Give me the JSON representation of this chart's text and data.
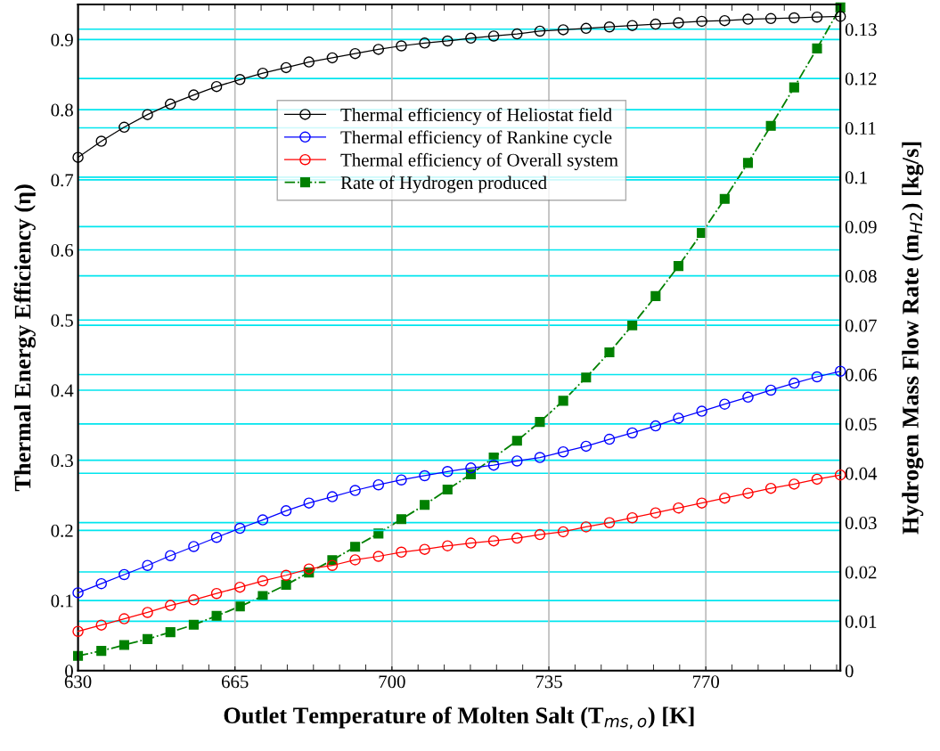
{
  "chart_data": {
    "type": "line",
    "xlabel": "Outlet Temperature of Molten Salt (T$_{ms,o}$) [K]",
    "ylabel": "Thermal Energy Efficiency (η)",
    "y2label": "Hydrogen Mass Flow Rate (m$_{H2}$) [kg/s]",
    "x": [
      630,
      635.2,
      640.3,
      645.5,
      650.6,
      655.8,
      660.9,
      666.1,
      671.2,
      676.4,
      681.5,
      686.7,
      691.8,
      697.0,
      702.1,
      707.3,
      712.4,
      717.6,
      722.7,
      727.9,
      733.0,
      738.2,
      743.3,
      748.5,
      753.6,
      758.8,
      763.9,
      769.1,
      774.2,
      779.4,
      784.5,
      789.7,
      794.8,
      800
    ],
    "xlim": [
      630,
      800
    ],
    "xticks": [
      630,
      665,
      700,
      735,
      770
    ],
    "ylim": [
      0,
      0.95
    ],
    "yticks": [
      0,
      0.1,
      0.2,
      0.3,
      0.4,
      0.5,
      0.6,
      0.7,
      0.8,
      0.9
    ],
    "y2lim": [
      0,
      0.135
    ],
    "y2ticks": [
      0,
      0.01,
      0.02,
      0.03,
      0.04,
      0.05,
      0.06,
      0.07,
      0.08,
      0.09,
      0.1,
      0.11,
      0.12,
      0.13
    ],
    "grid": true,
    "legend": "top",
    "series": [
      {
        "name": "Thermal efficiency of Heliostat field",
        "color": "#000000",
        "marker": "circle",
        "line_style": "solid",
        "values": [
          0.732,
          0.755,
          0.775,
          0.793,
          0.808,
          0.821,
          0.833,
          0.843,
          0.852,
          0.86,
          0.868,
          0.874,
          0.88,
          0.886,
          0.891,
          0.895,
          0.898,
          0.902,
          0.905,
          0.908,
          0.912,
          0.914,
          0.916,
          0.918,
          0.92,
          0.922,
          0.924,
          0.926,
          0.927,
          0.929,
          0.93,
          0.931,
          0.932,
          0.933
        ]
      },
      {
        "name": "Thermal efficiency of Rankine cycle",
        "color": "#0000ff",
        "marker": "circle",
        "line_style": "solid",
        "values": [
          0.111,
          0.124,
          0.137,
          0.15,
          0.164,
          0.177,
          0.19,
          0.203,
          0.215,
          0.228,
          0.239,
          0.248,
          0.257,
          0.265,
          0.272,
          0.278,
          0.284,
          0.289,
          0.293,
          0.299,
          0.304,
          0.312,
          0.32,
          0.33,
          0.339,
          0.349,
          0.36,
          0.37,
          0.38,
          0.39,
          0.4,
          0.41,
          0.419,
          0.427
        ]
      },
      {
        "name": "Thermal efficiency of Overall system",
        "color": "#ff0000",
        "marker": "circle",
        "line_style": "solid",
        "values": [
          0.056,
          0.065,
          0.074,
          0.083,
          0.093,
          0.101,
          0.11,
          0.119,
          0.128,
          0.136,
          0.145,
          0.15,
          0.158,
          0.163,
          0.169,
          0.173,
          0.178,
          0.182,
          0.185,
          0.189,
          0.194,
          0.198,
          0.205,
          0.211,
          0.218,
          0.225,
          0.232,
          0.239,
          0.246,
          0.253,
          0.26,
          0.266,
          0.273,
          0.279
        ]
      },
      {
        "name": "Rate of Hydrogen produced",
        "color": "#008000",
        "marker": "square",
        "line_style": "dashdot",
        "axis": "y2",
        "values": [
          0.003,
          0.004,
          0.0052,
          0.0064,
          0.0078,
          0.0093,
          0.0111,
          0.013,
          0.0151,
          0.0174,
          0.0199,
          0.0224,
          0.0251,
          0.0278,
          0.0307,
          0.0336,
          0.0367,
          0.0398,
          0.0432,
          0.0466,
          0.0504,
          0.0547,
          0.0594,
          0.0645,
          0.07,
          0.0759,
          0.082,
          0.0887,
          0.0956,
          0.1029,
          0.1104,
          0.1182,
          0.1261,
          0.1344
        ]
      }
    ]
  }
}
